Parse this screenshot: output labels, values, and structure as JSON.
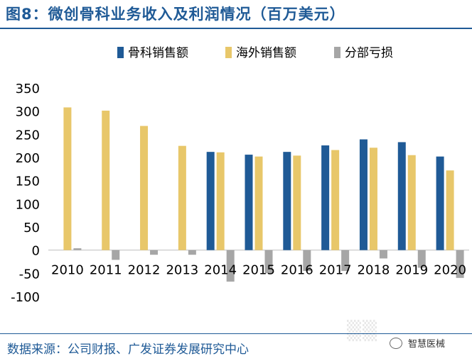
{
  "header": {
    "title": "图8：微创骨科业务收入及利润情况（百万美元）"
  },
  "footer": {
    "source": "数据来源：公司财报、广发证券发展研究中心",
    "watermark": "智慧医械"
  },
  "colors": {
    "title": "#1f5a96",
    "series_ortho": "#1f5a96",
    "series_overseas": "#e8c76a",
    "series_profit": "#a6a6a6"
  },
  "chart_data": {
    "type": "bar",
    "categories": [
      "2010",
      "2011",
      "2012",
      "2013",
      "2014",
      "2015",
      "2016",
      "2017",
      "2018",
      "2019",
      "2020"
    ],
    "series": [
      {
        "name": "骨科销售额",
        "color": "#1f5a96",
        "values": [
          null,
          null,
          null,
          null,
          212,
          206,
          212,
          226,
          239,
          233,
          202
        ]
      },
      {
        "name": "海外销售额",
        "color": "#e8c76a",
        "values": [
          308,
          301,
          268,
          225,
          211,
          202,
          204,
          216,
          221,
          205,
          172
        ]
      },
      {
        "name": "分部亏损",
        "color": "#a6a6a6",
        "values": [
          4,
          -21,
          -10,
          -10,
          -68,
          -50,
          -45,
          -45,
          -18,
          -38,
          -60
        ]
      }
    ],
    "ylim": [
      -100,
      350
    ],
    "yticks": [
      "350",
      "300",
      "250",
      "200",
      "150",
      "100",
      "50",
      "0",
      "-50",
      "-100"
    ],
    "legend_position": "top-right",
    "grid": false
  }
}
